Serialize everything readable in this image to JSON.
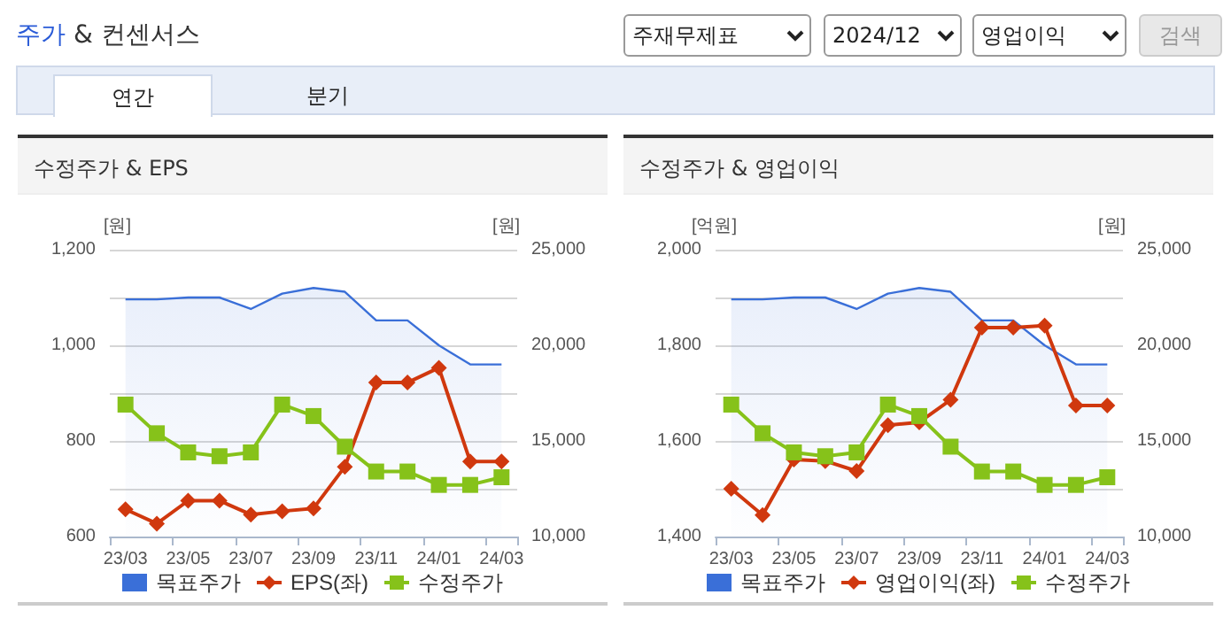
{
  "chart_data": [
    {
      "type": "other",
      "title": "주가 & 컨센서스",
      "annotations": [
        "주재무제표",
        "2024/12",
        "영업이익",
        "검색",
        "연간",
        "분기"
      ]
    },
    {
      "type": "line",
      "title": "수정주가 & EPS",
      "ylabel": "[원]",
      "y2label": "[원]",
      "categories": [
        "23/03",
        null,
        "23/05",
        null,
        "23/07",
        null,
        "23/09",
        null,
        "23/11",
        null,
        "24/01",
        null,
        "24/03"
      ],
      "ylim": [
        600,
        1200
      ],
      "yticks": [
        600,
        800,
        {
          "value": 1000,
          "label": "1,000"
        },
        {
          "value": 1200,
          "label": "1,200"
        }
      ],
      "y2lim": [
        10000,
        25000
      ],
      "y2ticks": [
        {
          "value": 10000,
          "label": "10,000"
        },
        {
          "value": 15000,
          "label": "15,000"
        },
        {
          "value": 20000,
          "label": "20,000"
        },
        {
          "value": 25000,
          "label": "25,000"
        }
      ],
      "grid": "y",
      "legend": "bottom",
      "series": [
        {
          "name": "목표주가",
          "type": "area",
          "axis": "y2",
          "color": "#3a6fd8",
          "marker": "none",
          "values": [
            22400,
            22400,
            22500,
            22500,
            21900,
            22700,
            23000,
            22800,
            21300,
            21300,
            20000,
            19000,
            19000
          ]
        },
        {
          "name": "EPS(좌)",
          "type": "line",
          "axis": "y",
          "color": "#d0380e",
          "marker": "diamond",
          "values": [
            657,
            627,
            675,
            675,
            646,
            653,
            659,
            746,
            922,
            922,
            953,
            757,
            757
          ]
        },
        {
          "name": "수정주가",
          "type": "line",
          "axis": "y2",
          "color": "#86c21a",
          "marker": "square",
          "values": [
            16900,
            15400,
            14400,
            14200,
            14400,
            16900,
            16300,
            14700,
            13400,
            13400,
            12700,
            12700,
            13100
          ]
        }
      ]
    },
    {
      "type": "line",
      "title": "수정주가 & 영업이익",
      "ylabel": "[억원]",
      "y2label": "[원]",
      "categories": [
        "23/03",
        null,
        "23/05",
        null,
        "23/07",
        null,
        "23/09",
        null,
        "23/11",
        null,
        "24/01",
        null,
        "24/03"
      ],
      "ylim": [
        1400,
        2000
      ],
      "yticks": [
        {
          "value": 1400,
          "label": "1,400"
        },
        {
          "value": 1600,
          "label": "1,600"
        },
        {
          "value": 1800,
          "label": "1,800"
        },
        {
          "value": 2000,
          "label": "2,000"
        }
      ],
      "y2lim": [
        10000,
        25000
      ],
      "y2ticks": [
        {
          "value": 10000,
          "label": "10,000"
        },
        {
          "value": 15000,
          "label": "15,000"
        },
        {
          "value": 20000,
          "label": "20,000"
        },
        {
          "value": 25000,
          "label": "25,000"
        }
      ],
      "grid": "y",
      "legend": "bottom",
      "series": [
        {
          "name": "목표주가",
          "type": "area",
          "axis": "y2",
          "color": "#3a6fd8",
          "marker": "none",
          "values": [
            22400,
            22400,
            22500,
            22500,
            21900,
            22700,
            23000,
            22800,
            21300,
            21300,
            20000,
            19000,
            19000
          ]
        },
        {
          "name": "영업이익(좌)",
          "type": "line",
          "axis": "y",
          "color": "#d0380e",
          "marker": "diamond",
          "values": [
            1500,
            1445,
            1561,
            1558,
            1537,
            1633,
            1639,
            1686,
            1837,
            1837,
            1841,
            1674,
            1674
          ]
        },
        {
          "name": "수정주가",
          "type": "line",
          "axis": "y2",
          "color": "#86c21a",
          "marker": "square",
          "values": [
            16900,
            15400,
            14400,
            14200,
            14400,
            16900,
            16300,
            14700,
            13400,
            13400,
            12700,
            12700,
            13100
          ]
        }
      ]
    }
  ]
}
